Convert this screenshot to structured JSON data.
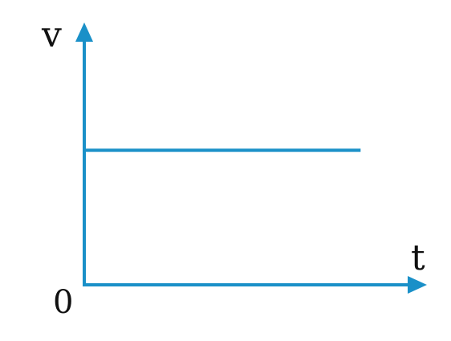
{
  "chart_data": {
    "type": "line",
    "title": "",
    "xlabel": "t",
    "ylabel": "v",
    "origin_label": "0",
    "x": [
      0,
      1
    ],
    "series": [
      {
        "values": [
          1,
          1
        ]
      }
    ],
    "xlim": [
      0,
      1.24
    ],
    "ylim": [
      0,
      1.95
    ],
    "grid": false,
    "legend": "none",
    "axis_color": "#1a90c8",
    "line_color": "#1a90c8"
  }
}
